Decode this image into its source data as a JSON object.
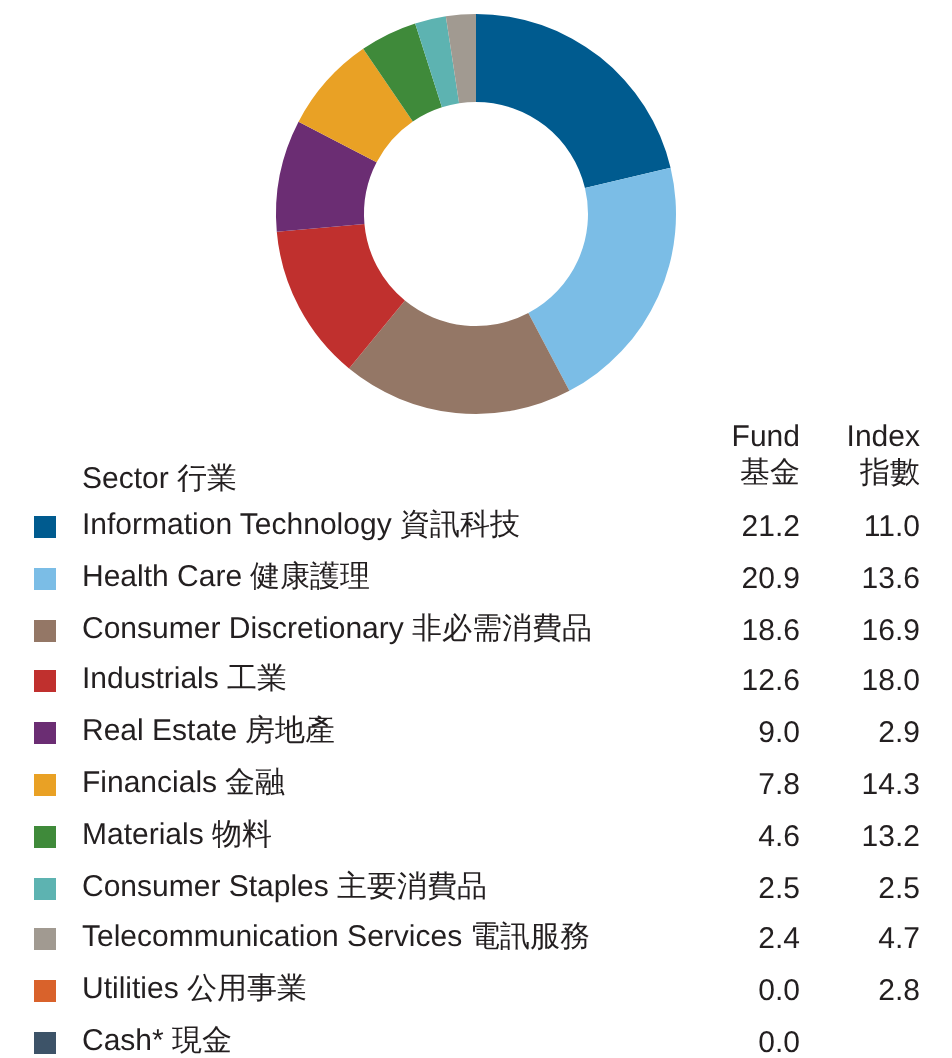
{
  "chart_data": {
    "type": "donut",
    "legend_title": "Sector 行業",
    "legend": "bottom",
    "categories": [
      "Information Technology 資訊科技",
      "Health Care 健康護理",
      "Consumer Discretionary 非必需消費品",
      "Industrials 工業",
      "Real Estate 房地產",
      "Financials 金融",
      "Materials 物料",
      "Consumer Staples 主要消費品",
      "Telecommunication Services 電訊服務",
      "Utilities 公用事業",
      "Cash* 現金"
    ],
    "colors": [
      "#005b8f",
      "#7bbde6",
      "#947766",
      "#c0302e",
      "#6b2d73",
      "#e9a125",
      "#3f8a3a",
      "#5db3b1",
      "#a19a91",
      "#d9622b",
      "#3d5368"
    ],
    "values": [
      21.2,
      20.9,
      18.6,
      12.6,
      9.0,
      7.8,
      4.6,
      2.5,
      2.4,
      0.0,
      0.0
    ],
    "value_labels": [
      "21.2",
      "20.9",
      "18.6",
      "12.6",
      "9.0",
      "7.8",
      "4.6",
      "2.5",
      "2.4",
      "0.0",
      "0.0"
    ],
    "annotations": [
      "Fund 基金",
      "Index 指數",
      "11.0",
      "13.6",
      "16.9",
      "18.0",
      "2.9",
      "14.3",
      "13.2",
      "2.5",
      "4.7",
      "2.8"
    ]
  }
}
